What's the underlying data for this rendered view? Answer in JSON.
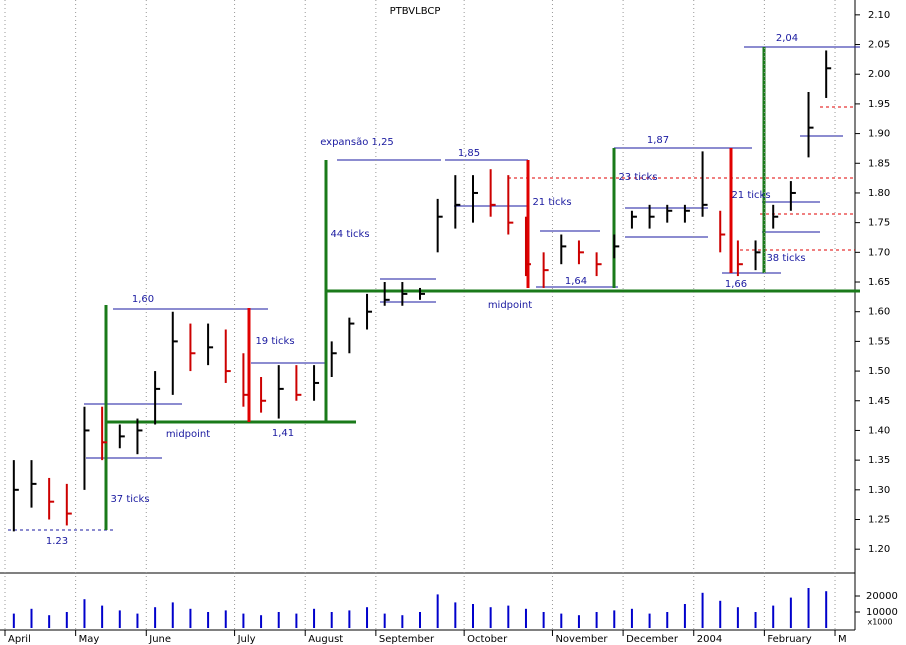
{
  "chart_data": {
    "type": "hlc",
    "title": "PTBVLBCP",
    "categories": [
      "April",
      null,
      null,
      null,
      "May",
      null,
      null,
      null,
      "June",
      null,
      null,
      null,
      null,
      "July",
      null,
      null,
      null,
      "August",
      null,
      null,
      null,
      "September",
      null,
      null,
      null,
      null,
      "October",
      null,
      null,
      null,
      null,
      "November",
      null,
      null,
      null,
      "December",
      null,
      null,
      null,
      "2004",
      null,
      null,
      null,
      "February",
      null,
      null,
      null,
      "M"
    ],
    "high": [
      1.35,
      1.35,
      1.32,
      1.31,
      1.44,
      1.44,
      1.41,
      1.42,
      1.5,
      1.6,
      1.58,
      1.58,
      1.57,
      1.53,
      1.49,
      1.51,
      1.51,
      1.51,
      1.55,
      1.59,
      1.63,
      1.65,
      1.65,
      1.64,
      1.79,
      1.83,
      1.83,
      1.84,
      1.83,
      1.76,
      1.7,
      1.73,
      1.72,
      1.7,
      1.73,
      1.77,
      1.78,
      1.78,
      1.78,
      1.87,
      1.77,
      1.72,
      1.72,
      1.78,
      1.82,
      1.97,
      2.04,
      null
    ],
    "low": [
      1.23,
      1.27,
      1.25,
      1.24,
      1.3,
      1.35,
      1.37,
      1.36,
      1.41,
      1.46,
      1.5,
      1.51,
      1.48,
      1.44,
      1.43,
      1.42,
      1.45,
      1.45,
      1.49,
      1.53,
      1.57,
      1.61,
      1.61,
      1.62,
      1.7,
      1.74,
      1.75,
      1.76,
      1.73,
      1.66,
      1.64,
      1.68,
      1.68,
      1.66,
      1.69,
      1.74,
      1.74,
      1.75,
      1.75,
      1.76,
      1.7,
      1.66,
      1.67,
      1.74,
      1.77,
      1.86,
      1.96,
      null
    ],
    "close": [
      1.3,
      1.31,
      1.28,
      1.26,
      1.4,
      1.38,
      1.39,
      1.4,
      1.47,
      1.55,
      1.53,
      1.54,
      1.5,
      1.46,
      1.45,
      1.47,
      1.46,
      1.48,
      1.53,
      1.58,
      1.6,
      1.62,
      1.63,
      1.63,
      1.76,
      1.78,
      1.8,
      1.78,
      1.75,
      1.68,
      1.67,
      1.71,
      1.7,
      1.68,
      1.71,
      1.76,
      1.76,
      1.77,
      1.77,
      1.78,
      1.73,
      1.68,
      1.7,
      1.76,
      1.8,
      1.91,
      2.01,
      null
    ],
    "up_color": "#000000",
    "down_color": "#cc0000",
    "ylim": [
      1.17,
      2.125
    ],
    "yticks": [
      {
        "value": 1.2,
        "label": "1.20"
      },
      {
        "value": 1.25,
        "label": "1.25"
      },
      {
        "value": 1.3,
        "label": "1.30"
      },
      {
        "value": 1.35,
        "label": "1.35"
      },
      {
        "value": 1.4,
        "label": "1.40"
      },
      {
        "value": 1.45,
        "label": "1.45"
      },
      {
        "value": 1.5,
        "label": "1.50"
      },
      {
        "value": 1.55,
        "label": "1.55"
      },
      {
        "value": 1.6,
        "label": "1.60"
      },
      {
        "value": 1.65,
        "label": "1.65"
      },
      {
        "value": 1.7,
        "label": "1.70"
      },
      {
        "value": 1.75,
        "label": "1.75"
      },
      {
        "value": 1.8,
        "label": "1.80"
      },
      {
        "value": 1.85,
        "label": "1.85"
      },
      {
        "value": 1.9,
        "label": "1.90"
      },
      {
        "value": 1.95,
        "label": "1.95"
      },
      {
        "value": 2.0,
        "label": "2.00"
      },
      {
        "value": 2.05,
        "label": "2.05"
      },
      {
        "value": 2.1,
        "label": "2.10"
      }
    ],
    "volume": {
      "values": [
        9000,
        12000,
        8000,
        10000,
        18000,
        14000,
        11000,
        9000,
        13000,
        16000,
        12000,
        10000,
        11000,
        9000,
        8000,
        10000,
        9000,
        12000,
        10000,
        11000,
        13000,
        9000,
        8000,
        10000,
        21000,
        16000,
        15000,
        13000,
        14000,
        12000,
        10000,
        9000,
        8000,
        10000,
        11000,
        12000,
        9000,
        10000,
        15000,
        22000,
        17000,
        13000,
        10000,
        14000,
        19000,
        25000,
        23000,
        null
      ],
      "color": "#0000cc",
      "ylim": [
        0,
        30000
      ],
      "yticks": [
        10000,
        20000
      ],
      "unit": "x1000"
    },
    "annotations": [
      "1,60",
      "19 ticks",
      "1,41",
      "midpoint",
      "37 ticks",
      "1.23",
      "expansão 1,25",
      "44 ticks",
      "midpoint",
      "1,85",
      "21 ticks",
      "1,64",
      "1,87",
      "23 ticks",
      "21 ticks",
      "1,66",
      "38 ticks",
      "2,04"
    ]
  }
}
